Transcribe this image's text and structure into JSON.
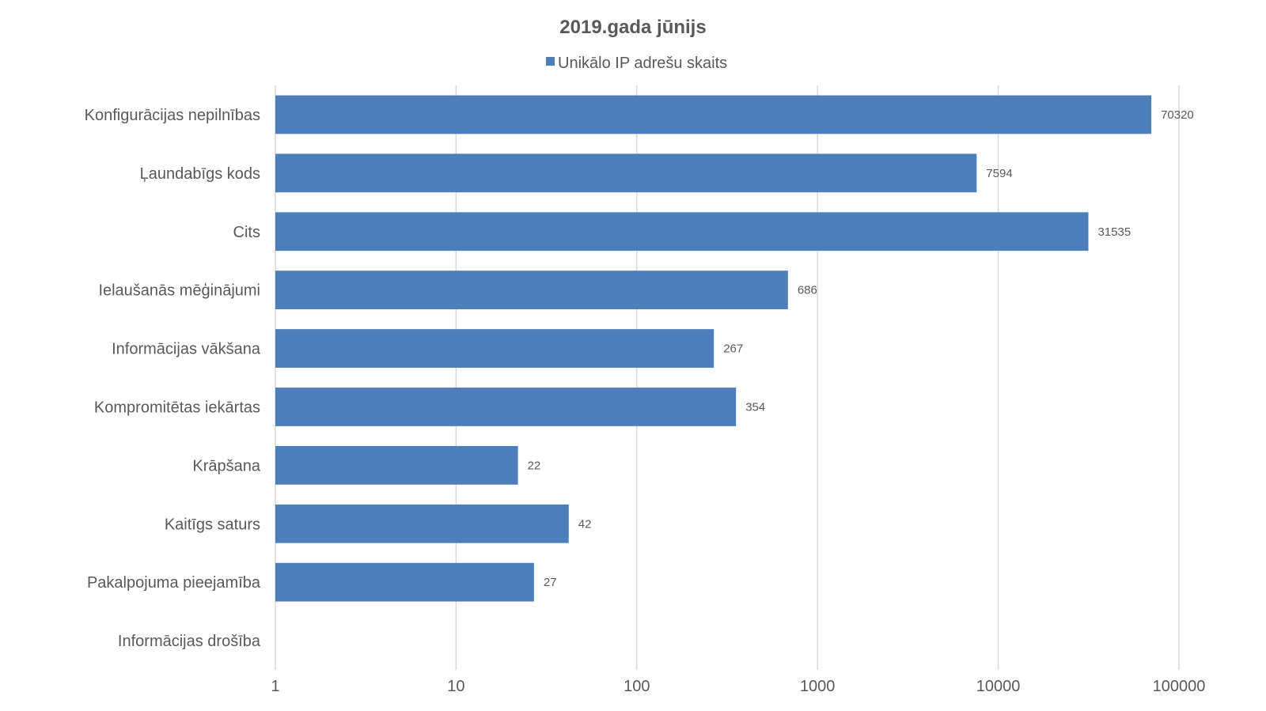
{
  "chart_data": {
    "type": "bar",
    "orientation": "horizontal",
    "title": "2019.gada jūnijs",
    "xscale": "log",
    "xlim": [
      1,
      100000
    ],
    "x_ticks": [
      "1",
      "10",
      "100",
      "1000",
      "10000",
      "100000"
    ],
    "grid": true,
    "legend_position": "top",
    "bar_color": "#4e7fbb",
    "categories": [
      "Konfigurācijas nepilnības",
      "Ļaundabīgs kods",
      "Cits",
      "Ielaušanās mēģinājumi",
      "Informācijas vākšana",
      "Kompromitētas iekārtas",
      "Krāpšana",
      "Kaitīgs saturs",
      "Pakalpojuma pieejamība",
      "Informācijas drošība"
    ],
    "series": [
      {
        "name": "Unikālo IP adrešu skaits",
        "values": [
          70320,
          7594,
          31535,
          686,
          267,
          354,
          22,
          42,
          27,
          null
        ],
        "labels": [
          "70320",
          "7594",
          "31535",
          "686",
          "267",
          "354",
          "22",
          "42",
          "27",
          ""
        ]
      }
    ]
  }
}
